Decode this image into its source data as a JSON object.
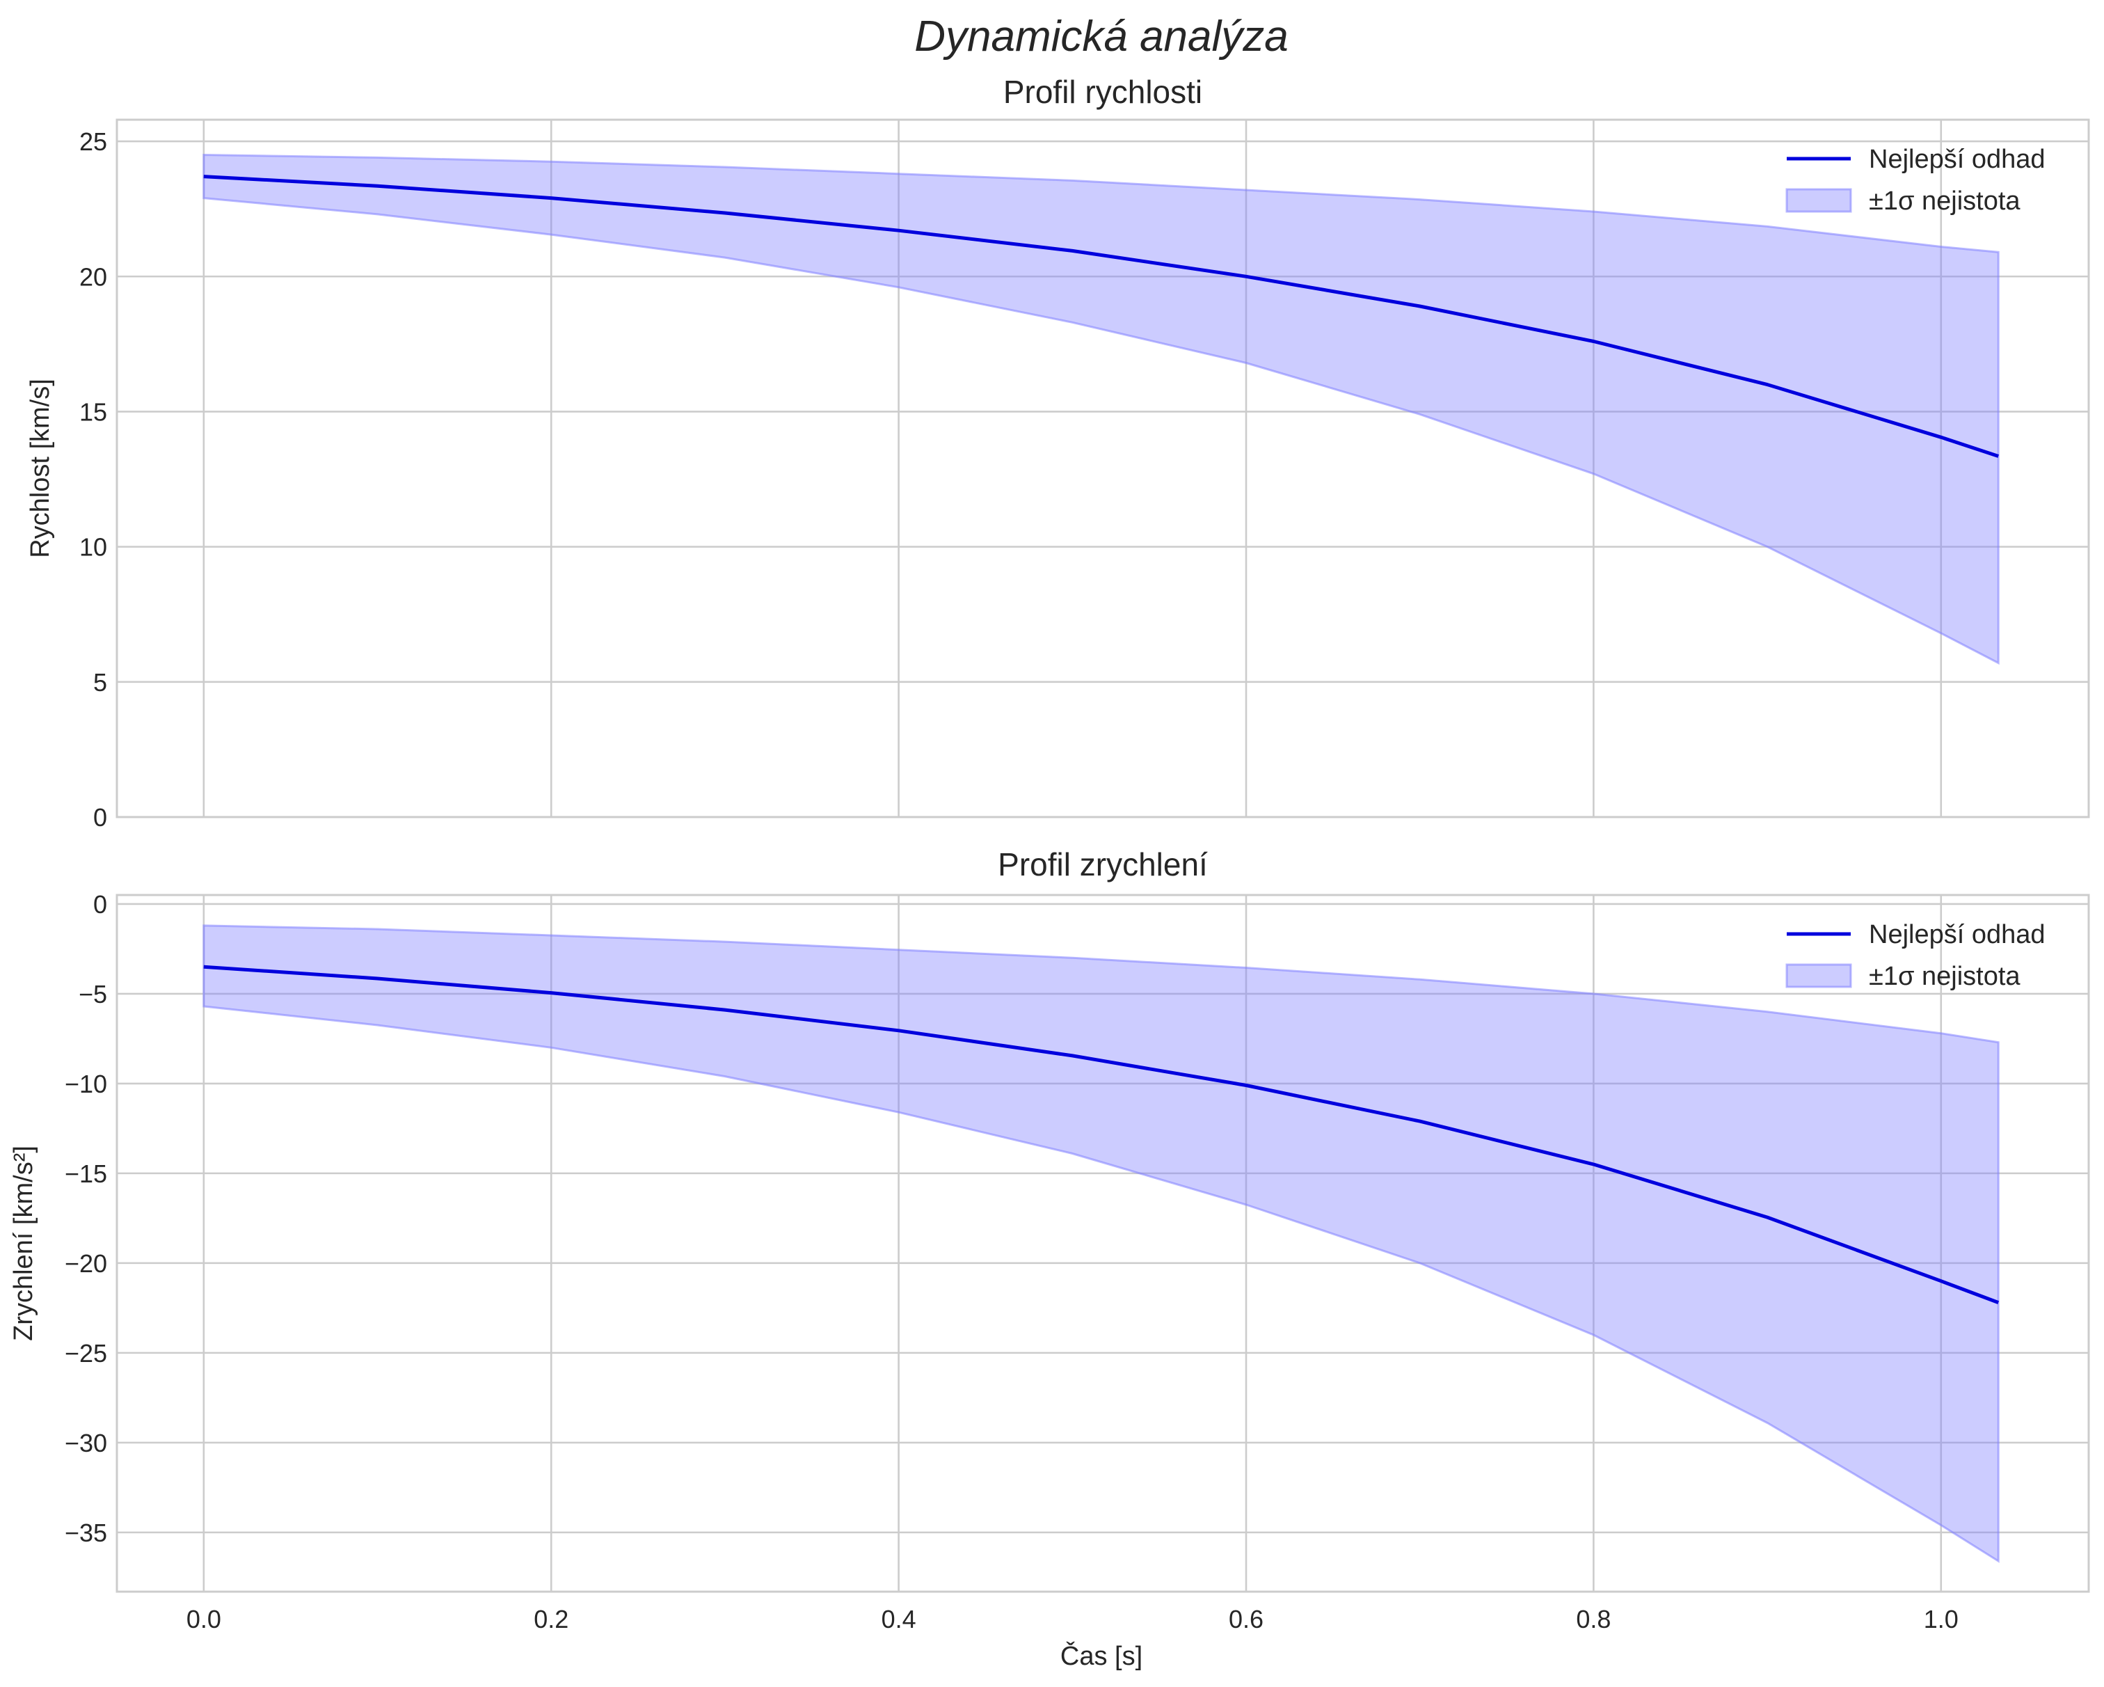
{
  "figure": {
    "suptitle": "Dynamická analýza",
    "xlabel": "Čas [s]",
    "colors": {
      "line": "#0000dd",
      "band_fill": "#8080ff",
      "grid": "#cccccc",
      "text": "#262626"
    }
  },
  "chart_data": [
    {
      "type": "line",
      "title": "Profil rychlosti",
      "xlabel": "",
      "ylabel": "Rychlost [km/s]",
      "xlim": [
        -0.05,
        1.085
      ],
      "ylim": [
        0,
        25.8
      ],
      "xticks": [
        0.0,
        0.2,
        0.4,
        0.6,
        0.8,
        1.0
      ],
      "xtick_labels": [
        "0.0",
        "0.2",
        "0.4",
        "0.6",
        "0.8",
        "1.0"
      ],
      "yticks": [
        0,
        5,
        10,
        15,
        20,
        25
      ],
      "ytick_labels": [
        "0",
        "5",
        "10",
        "15",
        "20",
        "25"
      ],
      "legend_position": "top-right",
      "legend": {
        "line_label": "Nejlepší odhad",
        "band_label": "±1σ nejistota"
      },
      "x": [
        0.0,
        0.1,
        0.2,
        0.3,
        0.4,
        0.5,
        0.6,
        0.7,
        0.8,
        0.9,
        1.0,
        1.033
      ],
      "series": [
        {
          "name": "Nejlepší odhad",
          "kind": "line",
          "values": [
            23.7,
            23.35,
            22.9,
            22.35,
            21.7,
            20.95,
            20.0,
            18.9,
            17.6,
            16.0,
            14.05,
            13.35
          ]
        },
        {
          "name": "±1σ nejistota",
          "kind": "band",
          "lower": [
            22.9,
            22.3,
            21.55,
            20.7,
            19.6,
            18.3,
            16.8,
            14.9,
            12.7,
            10.0,
            6.8,
            5.7
          ],
          "upper": [
            24.5,
            24.4,
            24.25,
            24.05,
            23.8,
            23.55,
            23.2,
            22.85,
            22.4,
            21.85,
            21.1,
            20.9
          ]
        }
      ]
    },
    {
      "type": "line",
      "title": "Profil zrychlení",
      "xlabel": "Čas [s]",
      "ylabel": "Zrychlení [km/s²]",
      "xlim": [
        -0.05,
        1.085
      ],
      "ylim": [
        -38.3,
        0.5
      ],
      "xticks": [
        0.0,
        0.2,
        0.4,
        0.6,
        0.8,
        1.0
      ],
      "xtick_labels": [
        "0.0",
        "0.2",
        "0.4",
        "0.6",
        "0.8",
        "1.0"
      ],
      "yticks": [
        0,
        -5,
        -10,
        -15,
        -20,
        -25,
        -30,
        -35
      ],
      "ytick_labels": [
        "0",
        "−5",
        "−10",
        "−15",
        "−20",
        "−25",
        "−30",
        "−35"
      ],
      "legend_position": "top-right",
      "legend": {
        "line_label": "Nejlepší odhad",
        "band_label": "±1σ nejistota"
      },
      "x": [
        0.0,
        0.1,
        0.2,
        0.3,
        0.4,
        0.5,
        0.6,
        0.7,
        0.8,
        0.9,
        1.0,
        1.033
      ],
      "series": [
        {
          "name": "Nejlepší odhad",
          "kind": "line",
          "values": [
            -3.5,
            -4.15,
            -4.95,
            -5.9,
            -7.05,
            -8.45,
            -10.1,
            -12.1,
            -14.5,
            -17.45,
            -21.0,
            -22.2
          ]
        },
        {
          "name": "±1σ nejistota",
          "kind": "band",
          "lower": [
            -5.7,
            -6.75,
            -8.0,
            -9.6,
            -11.6,
            -13.9,
            -16.75,
            -20.0,
            -24.0,
            -28.9,
            -34.6,
            -36.6
          ],
          "upper": [
            -1.2,
            -1.4,
            -1.75,
            -2.1,
            -2.55,
            -3.0,
            -3.55,
            -4.2,
            -5.0,
            -6.0,
            -7.2,
            -7.7
          ]
        }
      ]
    }
  ]
}
